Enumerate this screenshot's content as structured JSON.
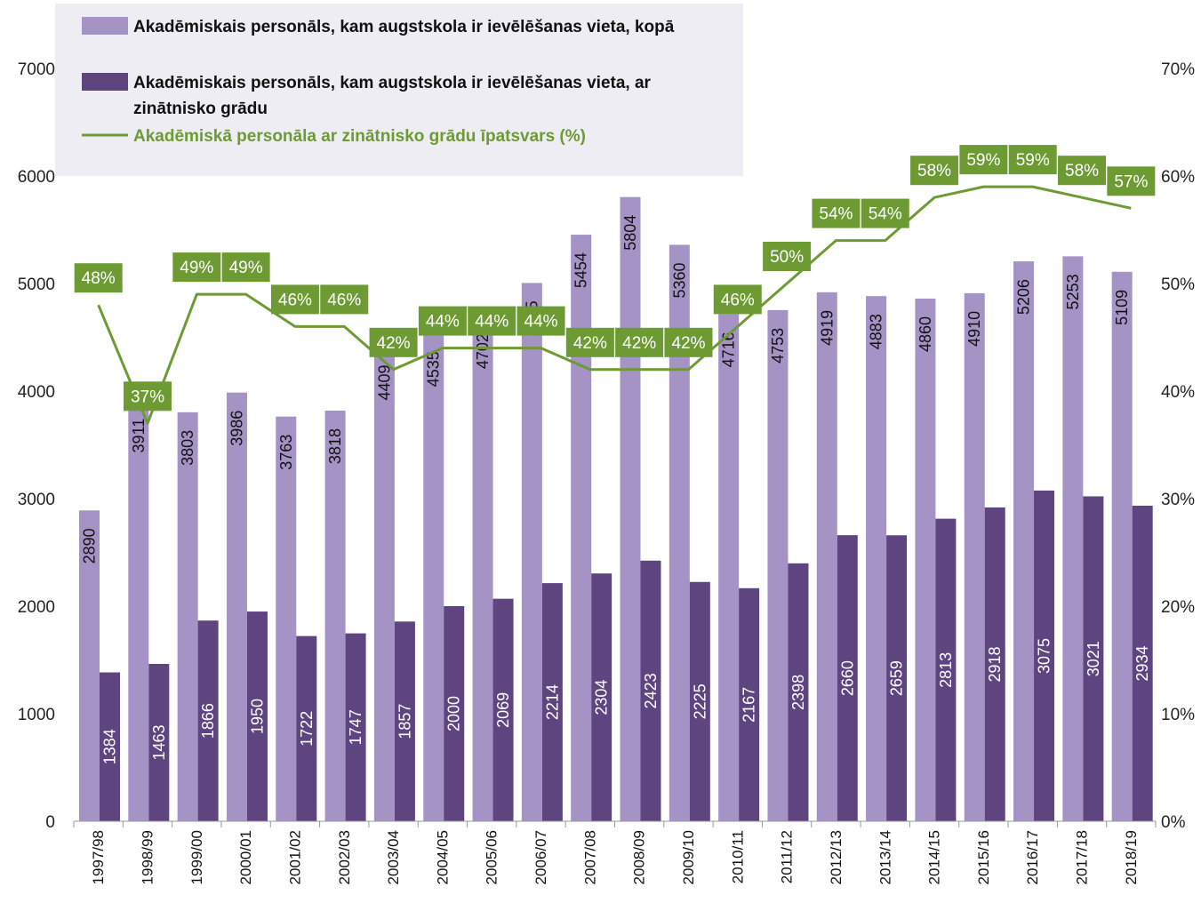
{
  "chart_data": {
    "type": "bar",
    "title": "",
    "categories": [
      "1997/98",
      "1998/99",
      "1999/00",
      "2000/01",
      "2001/02",
      "2002/03",
      "2003/04",
      "2004/05",
      "2005/06",
      "2006/07",
      "2007/08",
      "2008/09",
      "2009/10",
      "2010/11",
      "2011/12",
      "2012/13",
      "2013/14",
      "2014/15",
      "2015/16",
      "2016/17",
      "2017/18",
      "2018/19"
    ],
    "series": [
      {
        "name": "Akadēmiskais personāls, kam augstskola ir ievēlēšanas vieta, kopā",
        "type": "bar",
        "axis": "left",
        "color": "#a593c6",
        "values": [
          2890,
          3911,
          3803,
          3986,
          3763,
          3818,
          4409,
          4535,
          4702,
          5005,
          5454,
          5804,
          5360,
          4716,
          4753,
          4919,
          4883,
          4860,
          4910,
          5206,
          5253,
          5109
        ]
      },
      {
        "name": "Akadēmiskais personāls, kam augstskola ir ievēlēšanas vieta, ar zinātnisko grādu",
        "type": "bar",
        "axis": "left",
        "color": "#5e4580",
        "values": [
          1384,
          1463,
          1866,
          1950,
          1722,
          1747,
          1857,
          2000,
          2069,
          2214,
          2304,
          2423,
          2225,
          2167,
          2398,
          2660,
          2659,
          2813,
          2918,
          3075,
          3021,
          2934
        ]
      },
      {
        "name": "Akadēmiskā personāla ar zinātnisko grādu īpatsvars (%)",
        "type": "line",
        "axis": "right",
        "color": "#6e9a34",
        "values": [
          48,
          37,
          49,
          49,
          46,
          46,
          42,
          44,
          44,
          44,
          42,
          42,
          42,
          46,
          50,
          54,
          54,
          58,
          59,
          59,
          58,
          57
        ],
        "labels": [
          "48%",
          "37%",
          "49%",
          "49%",
          "46%",
          "46%",
          "42%",
          "44%",
          "44%",
          "44%",
          "42%",
          "42%",
          "42%",
          "46%",
          "50%",
          "54%",
          "54%",
          "58%",
          "59%",
          "59%",
          "58%",
          "57%"
        ]
      }
    ],
    "y_left": {
      "ylim": [
        0,
        7000
      ],
      "ticks": [
        "0",
        "1000",
        "2000",
        "3000",
        "4000",
        "5000",
        "6000",
        "7000"
      ]
    },
    "y_right": {
      "ylim": [
        0,
        70
      ],
      "ticks": [
        "0%",
        "10%",
        "20%",
        "30%",
        "40%",
        "50%",
        "60%",
        "70%"
      ]
    },
    "legend_placement": "top-left",
    "grid": false
  }
}
